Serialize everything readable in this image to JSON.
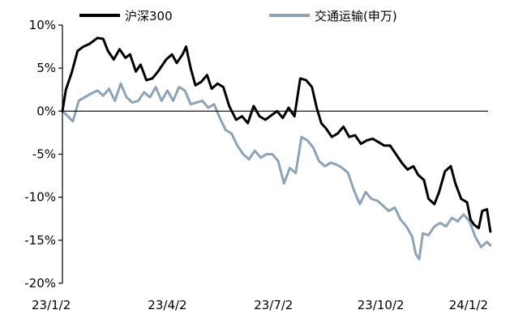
{
  "chart_data": {
    "type": "line",
    "x_start": "2023-01-02",
    "x_end": "2024-01-02",
    "x_ticks": [
      {
        "date": "2023-01-02",
        "label": "23/1/2"
      },
      {
        "date": "2023-04-02",
        "label": "23/4/2"
      },
      {
        "date": "2023-07-02",
        "label": "23/7/2"
      },
      {
        "date": "2023-10-02",
        "label": "23/10/2"
      },
      {
        "date": "2024-01-02",
        "label": "24/1/2"
      }
    ],
    "y_ticks": [
      {
        "value": 10,
        "label": "10%"
      },
      {
        "value": 5,
        "label": "5%"
      },
      {
        "value": 0,
        "label": "0%"
      },
      {
        "value": -5,
        "label": "-5%"
      },
      {
        "value": -10,
        "label": "-10%"
      },
      {
        "value": -15,
        "label": "-15%"
      },
      {
        "value": -20,
        "label": "-20%"
      }
    ],
    "ylim": [
      -20,
      10
    ],
    "legend_position": "top",
    "series": [
      {
        "name": "沪深300",
        "color": "#000000",
        "points": [
          [
            "2023-01-02",
            0.0
          ],
          [
            "2023-01-05",
            2.5
          ],
          [
            "2023-01-10",
            4.5
          ],
          [
            "2023-01-15",
            7.0
          ],
          [
            "2023-01-20",
            7.5
          ],
          [
            "2023-01-25",
            7.8
          ],
          [
            "2023-02-01",
            8.5
          ],
          [
            "2023-02-06",
            8.4
          ],
          [
            "2023-02-10",
            7.0
          ],
          [
            "2023-02-15",
            6.0
          ],
          [
            "2023-02-20",
            7.2
          ],
          [
            "2023-02-25",
            6.2
          ],
          [
            "2023-03-01",
            6.6
          ],
          [
            "2023-03-06",
            4.6
          ],
          [
            "2023-03-10",
            5.4
          ],
          [
            "2023-03-15",
            3.6
          ],
          [
            "2023-03-20",
            3.8
          ],
          [
            "2023-03-25",
            4.6
          ],
          [
            "2023-04-01",
            6.0
          ],
          [
            "2023-04-06",
            6.6
          ],
          [
            "2023-04-10",
            5.6
          ],
          [
            "2023-04-15",
            6.6
          ],
          [
            "2023-04-18",
            7.5
          ],
          [
            "2023-04-22",
            5.0
          ],
          [
            "2023-04-26",
            3.0
          ],
          [
            "2023-05-01",
            3.4
          ],
          [
            "2023-05-06",
            4.2
          ],
          [
            "2023-05-10",
            2.6
          ],
          [
            "2023-05-15",
            3.2
          ],
          [
            "2023-05-20",
            2.8
          ],
          [
            "2023-05-25",
            0.6
          ],
          [
            "2023-05-31",
            -1.0
          ],
          [
            "2023-06-05",
            -0.6
          ],
          [
            "2023-06-10",
            -1.4
          ],
          [
            "2023-06-15",
            0.6
          ],
          [
            "2023-06-20",
            -0.6
          ],
          [
            "2023-06-25",
            -1.0
          ],
          [
            "2023-06-30",
            -0.5
          ],
          [
            "2023-07-05",
            0.0
          ],
          [
            "2023-07-10",
            -0.8
          ],
          [
            "2023-07-15",
            0.4
          ],
          [
            "2023-07-20",
            -0.6
          ],
          [
            "2023-07-25",
            3.8
          ],
          [
            "2023-07-30",
            3.6
          ],
          [
            "2023-08-04",
            2.8
          ],
          [
            "2023-08-08",
            0.4
          ],
          [
            "2023-08-12",
            -1.4
          ],
          [
            "2023-08-16",
            -2.0
          ],
          [
            "2023-08-21",
            -3.0
          ],
          [
            "2023-08-26",
            -2.6
          ],
          [
            "2023-08-31",
            -1.8
          ],
          [
            "2023-09-05",
            -3.0
          ],
          [
            "2023-09-10",
            -2.8
          ],
          [
            "2023-09-15",
            -3.8
          ],
          [
            "2023-09-20",
            -3.4
          ],
          [
            "2023-09-25",
            -3.2
          ],
          [
            "2023-09-30",
            -3.6
          ],
          [
            "2023-10-05",
            -4.0
          ],
          [
            "2023-10-10",
            -4.0
          ],
          [
            "2023-10-15",
            -5.0
          ],
          [
            "2023-10-20",
            -6.0
          ],
          [
            "2023-10-25",
            -6.8
          ],
          [
            "2023-10-30",
            -6.4
          ],
          [
            "2023-11-03",
            -7.4
          ],
          [
            "2023-11-08",
            -8.0
          ],
          [
            "2023-11-12",
            -10.2
          ],
          [
            "2023-11-17",
            -10.8
          ],
          [
            "2023-11-21",
            -9.4
          ],
          [
            "2023-11-26",
            -7.0
          ],
          [
            "2023-12-01",
            -6.4
          ],
          [
            "2023-12-05",
            -8.4
          ],
          [
            "2023-12-10",
            -10.2
          ],
          [
            "2023-12-15",
            -10.6
          ],
          [
            "2023-12-18",
            -12.6
          ],
          [
            "2023-12-21",
            -13.2
          ],
          [
            "2023-12-25",
            -13.6
          ],
          [
            "2023-12-28",
            -11.6
          ],
          [
            "2024-01-01",
            -11.4
          ],
          [
            "2024-01-04",
            -14.0
          ]
        ]
      },
      {
        "name": "交通运输(申万)",
        "color": "#8ea3b5",
        "points": [
          [
            "2023-01-02",
            0.0
          ],
          [
            "2023-01-06",
            -0.5
          ],
          [
            "2023-01-11",
            -1.2
          ],
          [
            "2023-01-16",
            1.2
          ],
          [
            "2023-01-21",
            1.6
          ],
          [
            "2023-01-26",
            2.0
          ],
          [
            "2023-02-01",
            2.4
          ],
          [
            "2023-02-06",
            1.8
          ],
          [
            "2023-02-11",
            2.6
          ],
          [
            "2023-02-16",
            1.2
          ],
          [
            "2023-02-21",
            3.2
          ],
          [
            "2023-02-26",
            1.6
          ],
          [
            "2023-03-03",
            1.0
          ],
          [
            "2023-03-08",
            1.2
          ],
          [
            "2023-03-13",
            2.2
          ],
          [
            "2023-03-18",
            1.6
          ],
          [
            "2023-03-23",
            2.8
          ],
          [
            "2023-03-28",
            1.2
          ],
          [
            "2023-04-02",
            2.4
          ],
          [
            "2023-04-07",
            1.2
          ],
          [
            "2023-04-12",
            2.8
          ],
          [
            "2023-04-17",
            2.4
          ],
          [
            "2023-04-22",
            0.8
          ],
          [
            "2023-04-27",
            1.0
          ],
          [
            "2023-05-02",
            1.2
          ],
          [
            "2023-05-07",
            0.4
          ],
          [
            "2023-05-12",
            0.8
          ],
          [
            "2023-05-17",
            -0.8
          ],
          [
            "2023-05-22",
            -2.2
          ],
          [
            "2023-05-27",
            -2.6
          ],
          [
            "2023-06-01",
            -4.0
          ],
          [
            "2023-06-06",
            -5.0
          ],
          [
            "2023-06-11",
            -5.6
          ],
          [
            "2023-06-16",
            -4.6
          ],
          [
            "2023-06-21",
            -5.4
          ],
          [
            "2023-06-26",
            -5.0
          ],
          [
            "2023-07-01",
            -5.0
          ],
          [
            "2023-07-06",
            -5.8
          ],
          [
            "2023-07-11",
            -8.4
          ],
          [
            "2023-07-16",
            -6.6
          ],
          [
            "2023-07-21",
            -7.2
          ],
          [
            "2023-07-26",
            -3.0
          ],
          [
            "2023-07-31",
            -3.4
          ],
          [
            "2023-08-05",
            -4.2
          ],
          [
            "2023-08-10",
            -5.8
          ],
          [
            "2023-08-15",
            -6.4
          ],
          [
            "2023-08-20",
            -6.0
          ],
          [
            "2023-08-25",
            -6.2
          ],
          [
            "2023-08-30",
            -6.6
          ],
          [
            "2023-09-04",
            -7.2
          ],
          [
            "2023-09-09",
            -9.2
          ],
          [
            "2023-09-14",
            -10.8
          ],
          [
            "2023-09-19",
            -9.4
          ],
          [
            "2023-09-24",
            -10.2
          ],
          [
            "2023-09-29",
            -10.4
          ],
          [
            "2023-10-04",
            -11.0
          ],
          [
            "2023-10-09",
            -11.6
          ],
          [
            "2023-10-14",
            -11.2
          ],
          [
            "2023-10-19",
            -12.6
          ],
          [
            "2023-10-24",
            -13.4
          ],
          [
            "2023-10-29",
            -14.6
          ],
          [
            "2023-11-01",
            -16.6
          ],
          [
            "2023-11-04",
            -17.2
          ],
          [
            "2023-11-07",
            -14.2
          ],
          [
            "2023-11-12",
            -14.4
          ],
          [
            "2023-11-17",
            -13.4
          ],
          [
            "2023-11-22",
            -13.0
          ],
          [
            "2023-11-27",
            -13.4
          ],
          [
            "2023-12-02",
            -12.4
          ],
          [
            "2023-12-07",
            -12.8
          ],
          [
            "2023-12-12",
            -12.0
          ],
          [
            "2023-12-17",
            -12.8
          ],
          [
            "2023-12-22",
            -14.6
          ],
          [
            "2023-12-27",
            -15.8
          ],
          [
            "2024-01-01",
            -15.2
          ],
          [
            "2024-01-04",
            -15.6
          ]
        ]
      }
    ]
  }
}
